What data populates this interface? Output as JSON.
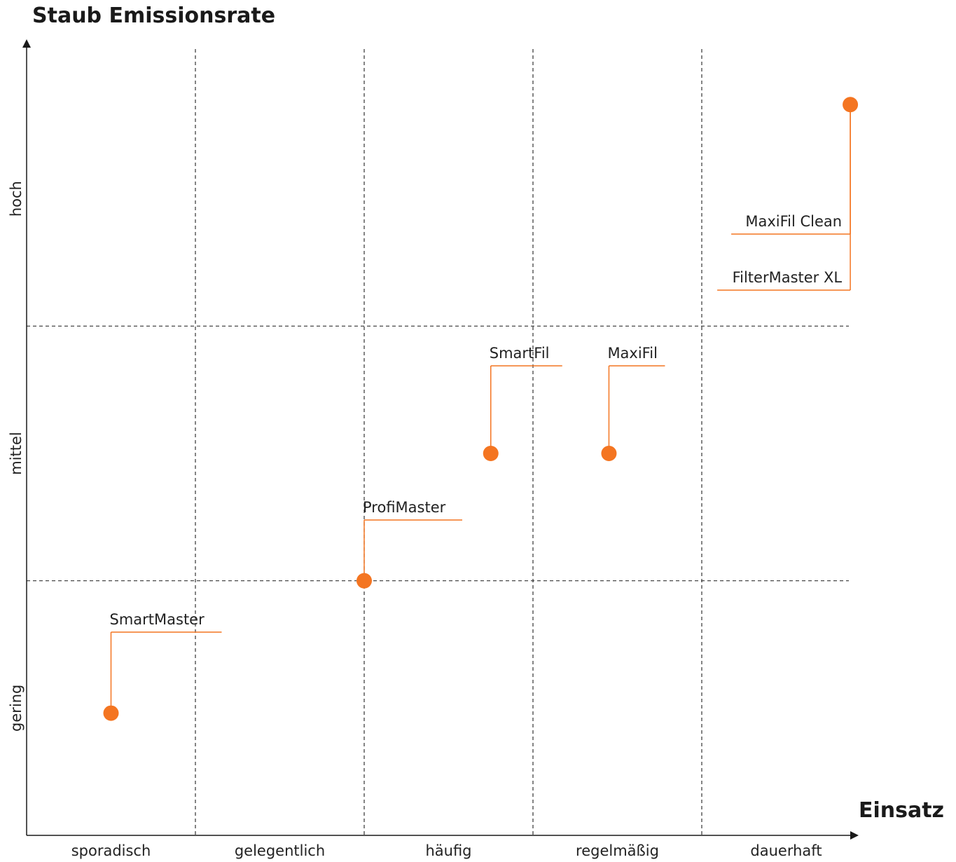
{
  "chart_data": {
    "type": "scatter",
    "title": "Staub Emissionsrate",
    "ylabel": "Staub Emissionsrate",
    "xlabel": "Einsatz",
    "x_categories": [
      "sporadisch",
      "gelegentlich",
      "häufig",
      "regelmäßig",
      "dauerhaft"
    ],
    "y_categories": [
      "gering",
      "mittel",
      "hoch"
    ],
    "xlim": [
      0,
      5
    ],
    "ylim": [
      0,
      3
    ],
    "grid": true,
    "accent_color": "#f47521",
    "points": [
      {
        "name": "SmartMaster",
        "x": 0.5,
        "y": 0.48
      },
      {
        "name": "ProfiMaster",
        "x": 2.0,
        "y": 1.0
      },
      {
        "name": "SmartFil",
        "x": 2.75,
        "y": 1.5
      },
      {
        "name": "MaxiFil",
        "x": 3.45,
        "y": 1.5
      },
      {
        "name": "MaxiFil Clean",
        "x": 4.88,
        "y": 2.87
      },
      {
        "name": "FilterMaster XL",
        "x": 4.88,
        "y": 2.87
      }
    ]
  }
}
